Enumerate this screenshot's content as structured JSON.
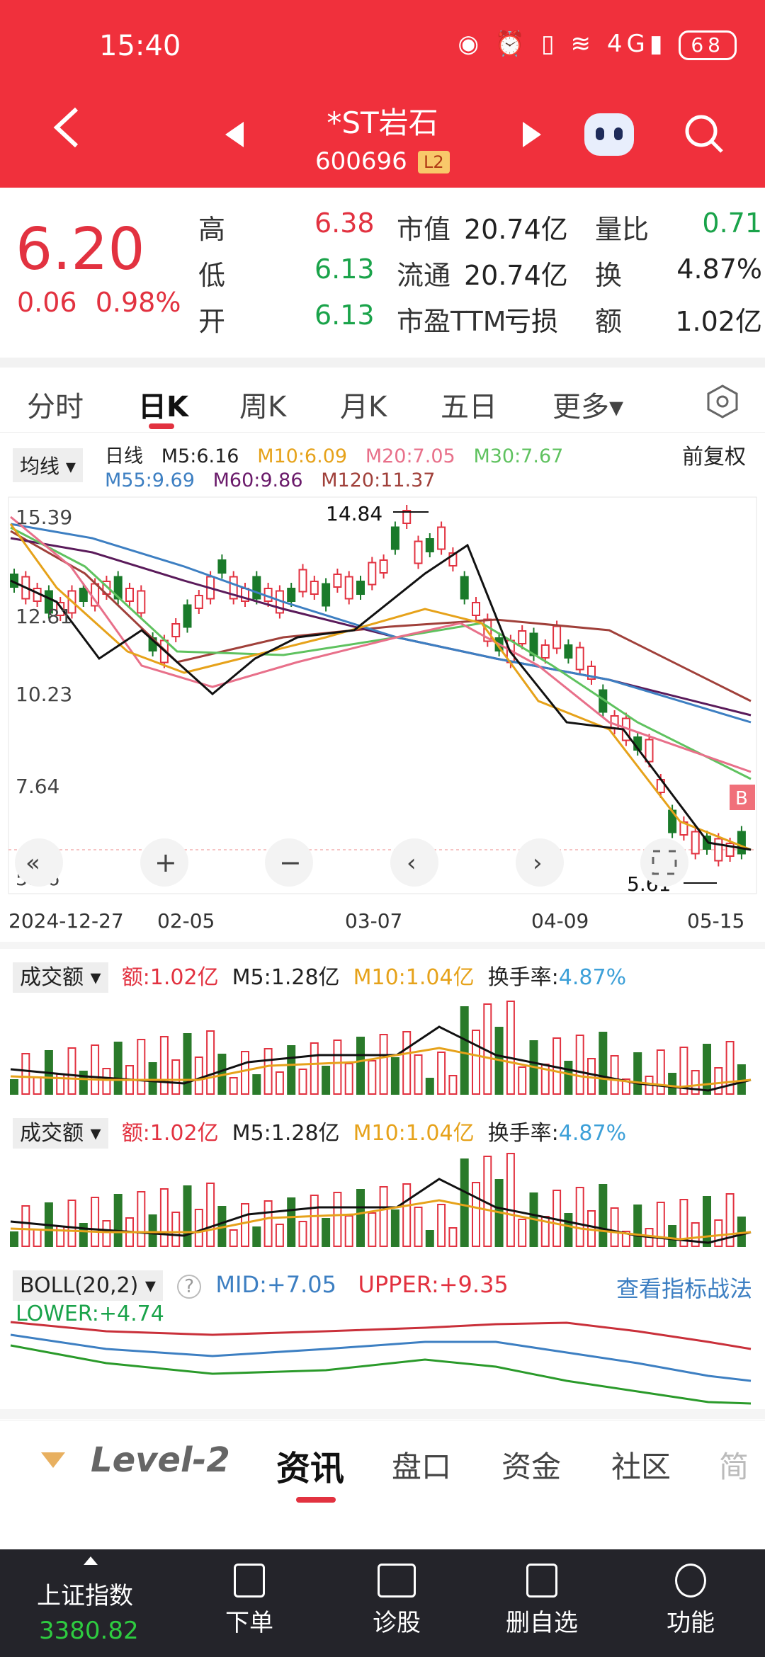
{
  "status": {
    "time": "15:40",
    "icons": "◉ ⏰ ▯ ≋ 4G▮",
    "battery": "68"
  },
  "header": {
    "name": "*ST岩石",
    "code": "600696",
    "level_badge": "L2"
  },
  "quote": {
    "price": "6.20",
    "change": "0.06",
    "change_pct": "0.98%",
    "rows": [
      {
        "l1": "高",
        "v1": "6.38",
        "l2": "市值",
        "v2": "20.74亿",
        "l3": "量比",
        "v3": "0.71"
      },
      {
        "l1": "低",
        "v1": "6.13",
        "l2": "流通",
        "v2": "20.74亿",
        "l3": "换",
        "v3": "4.87%"
      },
      {
        "l1": "开",
        "v1": "6.13",
        "l2": "市盈TTM",
        "v2": "亏损",
        "l3": "额",
        "v3": "1.02亿"
      }
    ]
  },
  "tabs": [
    "分时",
    "日K",
    "周K",
    "月K",
    "五日",
    "更多▾"
  ],
  "ma_legend": {
    "select": "均线 ▾",
    "kind": "日线",
    "m5": "M5:6.16",
    "m10": "M10:6.09",
    "m20": "M20:7.05",
    "m30": "M30:7.67",
    "m55": "M55:9.69",
    "m60": "M60:9.86",
    "m120": "M120:11.37",
    "adjust": "前复权"
  },
  "chart_labels": {
    "y_ticks": [
      "15.39",
      "12.81",
      "10.23",
      "7.64",
      "5.06"
    ],
    "high_mark": "14.84",
    "low_mark": "5.61",
    "flag": "B"
  },
  "dates": [
    "2024-12-27",
    "02-05",
    "03-07",
    "04-09",
    "05-15"
  ],
  "volume_panel": {
    "select": "成交额 ▾",
    "amount": "额:1.02亿",
    "m5": "M5:1.28亿",
    "m10": "M10:1.04亿",
    "turnover_label": "换手率:",
    "turnover": "4.87%"
  },
  "boll": {
    "select": "BOLL(20,2) ▾",
    "help": "?",
    "mid": "MID:+7.05",
    "upper": "UPPER:+9.35",
    "lower": "LOWER:+4.74",
    "link": "查看指标战法"
  },
  "info_tabs": [
    "Level-2",
    "资讯",
    "盘口",
    "资金",
    "社区",
    "简"
  ],
  "bottom_nav": {
    "index_name": "上证指数",
    "index_value": "3380.82",
    "items": [
      "下单",
      "诊股",
      "删自选",
      "功能"
    ]
  },
  "colors": {
    "brand": "#f0303c",
    "up": "#e23240",
    "down": "#1aa34a"
  }
}
